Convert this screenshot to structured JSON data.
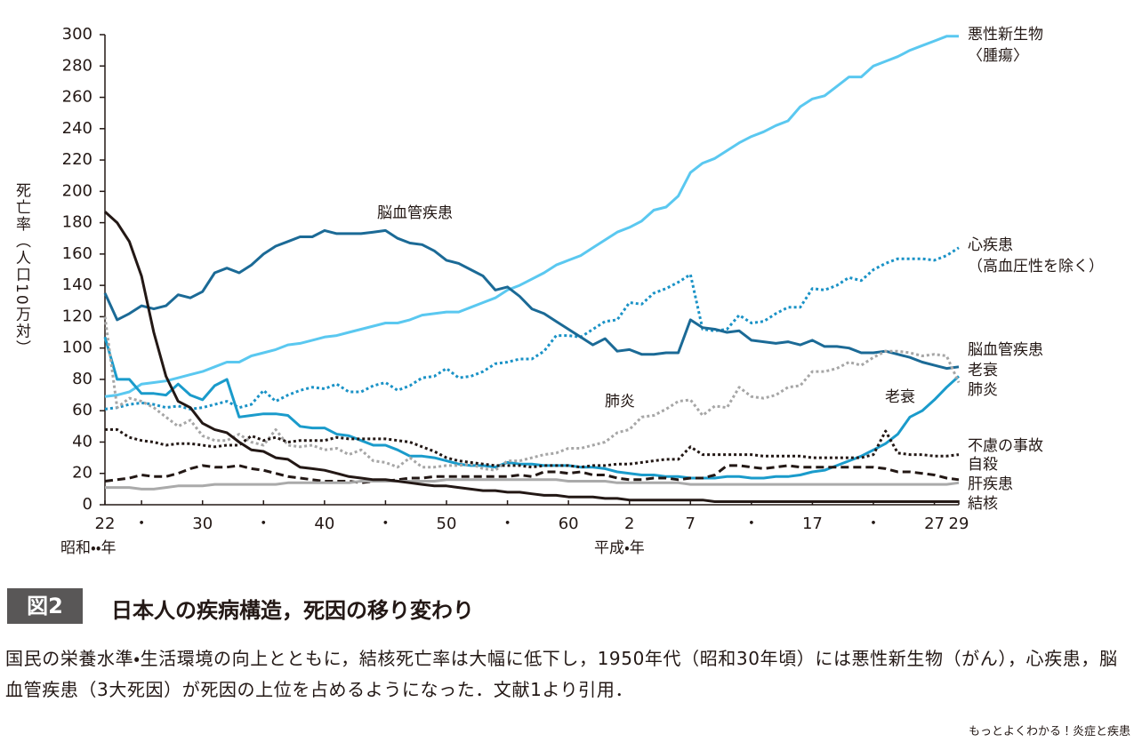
{
  "chart_data": {
    "type": "line",
    "y_label": "死亡率（人口10万対）",
    "era_labels": [
      "昭和・・年",
      "平成・年"
    ],
    "annotations": [
      "脳血管疾患",
      "肺炎",
      "老衰"
    ],
    "ylim": [
      0,
      300
    ],
    "yticks": [
      0,
      20,
      40,
      60,
      80,
      100,
      120,
      140,
      160,
      180,
      200,
      220,
      240,
      260,
      280,
      300
    ],
    "categories": [
      "22",
      null,
      null,
      "・",
      null,
      null,
      null,
      null,
      "30",
      null,
      null,
      null,
      null,
      "・",
      null,
      null,
      null,
      null,
      "40",
      null,
      null,
      null,
      null,
      "・",
      null,
      null,
      null,
      null,
      "50",
      null,
      null,
      null,
      null,
      "・",
      null,
      null,
      null,
      null,
      "60",
      null,
      null,
      null,
      null,
      "2",
      null,
      null,
      null,
      null,
      "7",
      null,
      null,
      null,
      null,
      "・",
      null,
      null,
      null,
      null,
      "17",
      null,
      null,
      null,
      null,
      "・",
      null,
      null,
      null,
      null,
      "27",
      null,
      "29"
    ],
    "series": [
      {
        "name": "悪性新生物\n〈腫瘍〉",
        "color": "#5ac8f0",
        "style": "solid",
        "values": [
          69,
          70,
          72,
          77,
          78,
          79,
          81,
          83,
          85,
          88,
          91,
          91,
          95,
          97,
          99,
          102,
          103,
          105,
          107,
          108,
          110,
          112,
          114,
          116,
          116,
          118,
          121,
          122,
          123,
          123,
          126,
          129,
          132,
          137,
          140,
          144,
          148,
          153,
          156,
          159,
          164,
          169,
          174,
          177,
          181,
          188,
          190,
          197,
          212,
          218,
          221,
          226,
          231,
          235,
          238,
          242,
          245,
          254,
          259,
          261,
          267,
          273,
          273,
          280,
          283,
          286,
          290,
          293,
          296,
          299,
          299
        ]
      },
      {
        "name": "心疾患\n（高血圧性を除く）",
        "color": "#1a92c6",
        "style": "dotted",
        "values": [
          61,
          62,
          64,
          65,
          64,
          62,
          63,
          61,
          62,
          64,
          66,
          62,
          64,
          73,
          66,
          70,
          73,
          75,
          74,
          77,
          72,
          72,
          76,
          78,
          73,
          76,
          81,
          82,
          87,
          81,
          82,
          85,
          90,
          91,
          93,
          93,
          98,
          108,
          108,
          107,
          112,
          117,
          118,
          129,
          128,
          135,
          138,
          142,
          147,
          112,
          111,
          112,
          121,
          116,
          117,
          122,
          126,
          126,
          138,
          137,
          140,
          145,
          143,
          150,
          154,
          157,
          157,
          157,
          156,
          159,
          164
        ]
      },
      {
        "name": "脳血管疾患",
        "color": "#1b6a96",
        "style": "solid",
        "values": [
          135,
          118,
          122,
          127,
          125,
          127,
          134,
          132,
          136,
          148,
          151,
          148,
          153,
          160,
          165,
          168,
          171,
          171,
          175,
          173,
          173,
          173,
          174,
          175,
          170,
          167,
          166,
          162,
          156,
          154,
          150,
          146,
          137,
          139,
          133,
          125,
          122,
          117,
          112,
          107,
          102,
          106,
          98,
          99,
          96,
          96,
          97,
          97,
          118,
          113,
          112,
          110,
          111,
          105,
          104,
          103,
          104,
          102,
          105,
          101,
          101,
          100,
          97,
          97,
          98,
          96,
          94,
          91,
          89,
          87,
          88
        ]
      },
      {
        "name": "老衰",
        "color": "#1a9bcb",
        "style": "solid",
        "values": [
          107,
          80,
          80,
          71,
          71,
          70,
          77,
          70,
          67,
          76,
          80,
          56,
          57,
          58,
          58,
          57,
          50,
          49,
          49,
          45,
          44,
          41,
          38,
          38,
          35,
          31,
          31,
          30,
          28,
          26,
          25,
          25,
          24,
          27,
          26,
          26,
          25,
          25,
          25,
          24,
          24,
          23,
          21,
          20,
          19,
          19,
          18,
          18,
          17,
          17,
          17,
          18,
          18,
          17,
          17,
          18,
          18,
          19,
          21,
          22,
          25,
          28,
          31,
          35,
          39,
          45,
          56,
          60,
          67,
          75,
          82
        ]
      },
      {
        "name": "肺炎",
        "color": "#a6a6a6",
        "style": "dotted",
        "values": [
          120,
          62,
          68,
          66,
          62,
          56,
          50,
          54,
          44,
          41,
          41,
          45,
          40,
          38,
          48,
          38,
          37,
          38,
          35,
          36,
          32,
          35,
          28,
          27,
          24,
          30,
          24,
          24,
          25,
          25,
          26,
          23,
          22,
          28,
          28,
          30,
          32,
          33,
          36,
          36,
          38,
          40,
          46,
          48,
          56,
          57,
          61,
          66,
          67,
          57,
          63,
          62,
          75,
          69,
          68,
          70,
          75,
          76,
          85,
          85,
          87,
          91,
          89,
          94,
          98,
          98,
          97,
          95,
          96,
          95,
          78
        ]
      },
      {
        "name": "不慮の事故",
        "color": "#231815",
        "style": "dotted",
        "values": [
          48,
          48,
          43,
          41,
          40,
          38,
          39,
          39,
          38,
          37,
          38,
          38,
          44,
          41,
          43,
          40,
          41,
          41,
          41,
          43,
          42,
          42,
          42,
          42,
          41,
          40,
          37,
          34,
          30,
          28,
          27,
          26,
          25,
          25,
          25,
          24,
          25,
          25,
          25,
          24,
          25,
          25,
          26,
          26,
          27,
          28,
          29,
          29,
          37,
          32,
          32,
          32,
          32,
          32,
          31,
          31,
          31,
          31,
          30,
          30,
          30,
          30,
          30,
          32,
          47,
          33,
          32,
          32,
          31,
          31,
          32
        ]
      },
      {
        "name": "自殺",
        "color": "#231815",
        "style": "dashed",
        "values": [
          15,
          16,
          17,
          19,
          18,
          18,
          20,
          23,
          25,
          24,
          24,
          25,
          23,
          22,
          20,
          18,
          17,
          16,
          15,
          15,
          15,
          14,
          15,
          15,
          16,
          17,
          17,
          18,
          18,
          18,
          18,
          18,
          18,
          18,
          19,
          18,
          21,
          21,
          20,
          21,
          19,
          19,
          17,
          16,
          16,
          17,
          17,
          16,
          17,
          17,
          19,
          25,
          25,
          24,
          23,
          24,
          25,
          24,
          24,
          24,
          24,
          24,
          24,
          24,
          23,
          21,
          21,
          20,
          19,
          17,
          16
        ]
      },
      {
        "name": "肝疾患",
        "color": "#aaaaaa",
        "style": "solid",
        "values": [
          11,
          11,
          11,
          10,
          10,
          11,
          12,
          12,
          12,
          13,
          13,
          13,
          13,
          13,
          13,
          14,
          14,
          14,
          14,
          14,
          14,
          15,
          15,
          15,
          15,
          15,
          15,
          15,
          16,
          16,
          16,
          16,
          16,
          16,
          16,
          16,
          16,
          16,
          15,
          15,
          15,
          15,
          14,
          14,
          14,
          14,
          14,
          14,
          13,
          13,
          13,
          13,
          13,
          13,
          13,
          13,
          13,
          13,
          13,
          13,
          13,
          13,
          13,
          13,
          13,
          13,
          13,
          13,
          13,
          13,
          14
        ]
      },
      {
        "name": "結核",
        "color": "#231815",
        "style": "solid",
        "values": [
          187,
          180,
          168,
          146,
          110,
          82,
          66,
          62,
          52,
          48,
          46,
          40,
          35,
          34,
          30,
          29,
          24,
          23,
          22,
          20,
          18,
          17,
          16,
          16,
          15,
          14,
          13,
          12,
          12,
          11,
          10,
          9,
          9,
          8,
          8,
          7,
          6,
          6,
          5,
          5,
          5,
          4,
          4,
          3,
          3,
          3,
          3,
          3,
          3,
          3,
          2,
          2,
          2,
          2,
          2,
          2,
          2,
          2,
          2,
          2,
          2,
          2,
          2,
          2,
          2,
          2,
          2,
          2,
          2,
          2,
          2
        ]
      }
    ]
  },
  "figure": {
    "label": "図2",
    "title": "日本人の疾病構造，死因の移り変わり",
    "caption": "国民の栄養水準・生活環境の向上とともに，結核死亡率は大幅に低下し，1950年代（昭和30年頃）には悪性新生物（がん），心疾患，脳血管疾患（3大死因）が死因の上位を占めるようになった．文献1より引用．",
    "source": "もっとよくわかる！炎症と疾患"
  }
}
